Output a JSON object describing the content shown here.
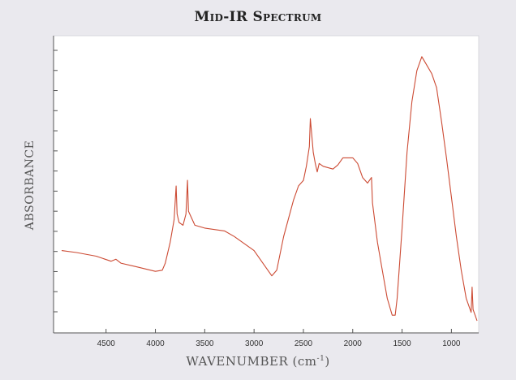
{
  "chart_data": {
    "type": "line",
    "title": "Mid-IR Spectrum",
    "xlabel": "WAVENUMBER",
    "xlabel_unit": "(cm",
    "xlabel_unit_sup": "-1",
    "xlabel_unit_close": ")",
    "ylabel": "ABSORBANCE",
    "xlim": [
      4950,
      740
    ],
    "ylim": [
      0,
      1
    ],
    "x_reversed": true,
    "xticks": [
      4500,
      4000,
      3500,
      3000,
      2500,
      2000,
      1500,
      1000
    ],
    "y_tick_count": 14,
    "grid": false,
    "series": [
      {
        "color": "#cc4a33",
        "points": [
          [
            4950,
            0.27
          ],
          [
            4800,
            0.263
          ],
          [
            4600,
            0.25
          ],
          [
            4450,
            0.232
          ],
          [
            4400,
            0.239
          ],
          [
            4350,
            0.225
          ],
          [
            4200,
            0.213
          ],
          [
            4000,
            0.196
          ],
          [
            3930,
            0.2
          ],
          [
            3900,
            0.225
          ],
          [
            3850,
            0.3
          ],
          [
            3810,
            0.38
          ],
          [
            3790,
            0.5
          ],
          [
            3780,
            0.4
          ],
          [
            3760,
            0.37
          ],
          [
            3720,
            0.36
          ],
          [
            3690,
            0.4
          ],
          [
            3675,
            0.52
          ],
          [
            3665,
            0.41
          ],
          [
            3600,
            0.36
          ],
          [
            3500,
            0.35
          ],
          [
            3300,
            0.34
          ],
          [
            3200,
            0.32
          ],
          [
            3000,
            0.27
          ],
          [
            2900,
            0.22
          ],
          [
            2820,
            0.18
          ],
          [
            2770,
            0.2
          ],
          [
            2700,
            0.32
          ],
          [
            2600,
            0.45
          ],
          [
            2550,
            0.5
          ],
          [
            2500,
            0.52
          ],
          [
            2470,
            0.57
          ],
          [
            2440,
            0.64
          ],
          [
            2430,
            0.74
          ],
          [
            2420,
            0.7
          ],
          [
            2400,
            0.62
          ],
          [
            2380,
            0.58
          ],
          [
            2360,
            0.55
          ],
          [
            2340,
            0.58
          ],
          [
            2300,
            0.57
          ],
          [
            2200,
            0.56
          ],
          [
            2150,
            0.575
          ],
          [
            2100,
            0.6
          ],
          [
            2000,
            0.6
          ],
          [
            1950,
            0.58
          ],
          [
            1900,
            0.53
          ],
          [
            1850,
            0.51
          ],
          [
            1810,
            0.53
          ],
          [
            1800,
            0.44
          ],
          [
            1750,
            0.3
          ],
          [
            1700,
            0.2
          ],
          [
            1650,
            0.1
          ],
          [
            1600,
            0.04
          ],
          [
            1570,
            0.04
          ],
          [
            1550,
            0.1
          ],
          [
            1500,
            0.35
          ],
          [
            1450,
            0.62
          ],
          [
            1400,
            0.8
          ],
          [
            1350,
            0.91
          ],
          [
            1300,
            0.96
          ],
          [
            1250,
            0.93
          ],
          [
            1200,
            0.9
          ],
          [
            1150,
            0.85
          ],
          [
            1100,
            0.73
          ],
          [
            1050,
            0.6
          ],
          [
            1000,
            0.46
          ],
          [
            950,
            0.32
          ],
          [
            900,
            0.2
          ],
          [
            850,
            0.1
          ],
          [
            800,
            0.05
          ],
          [
            790,
            0.14
          ],
          [
            780,
            0.06
          ],
          [
            760,
            0.04
          ],
          [
            740,
            0.02
          ]
        ]
      }
    ]
  }
}
